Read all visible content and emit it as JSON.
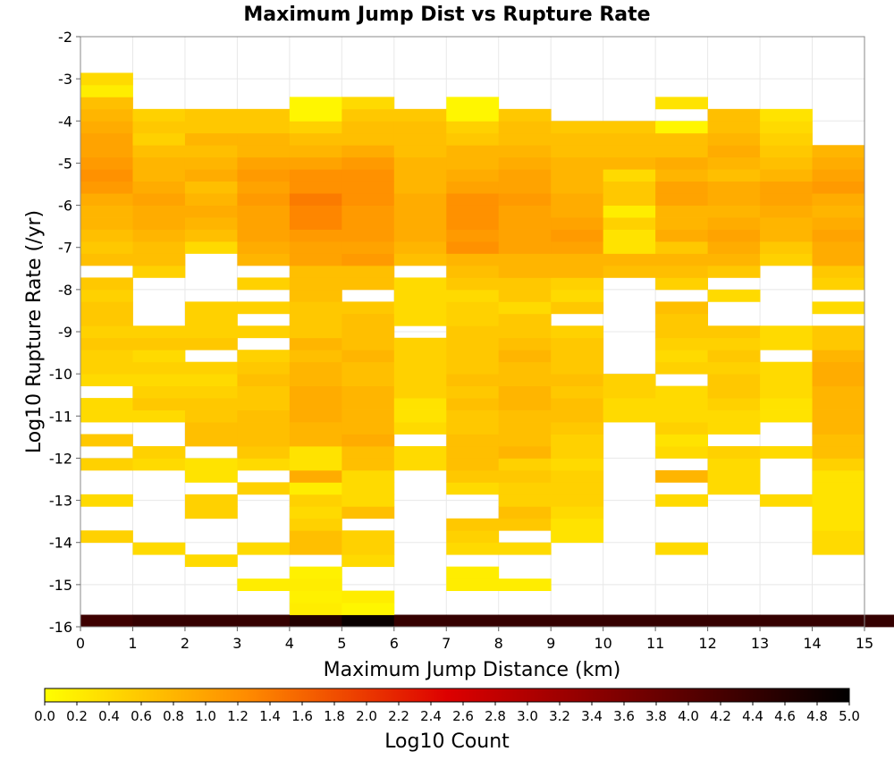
{
  "chart_data": {
    "type": "heatmap",
    "title": "Maximum Jump Dist vs Rupture Rate",
    "xlabel": "Maximum Jump Distance (km)",
    "ylabel": "Log10 Rupture Rate (/yr)",
    "xlim": [
      0,
      15
    ],
    "ylim": [
      -16,
      -2
    ],
    "x_ticks": [
      "0",
      "1",
      "2",
      "3",
      "4",
      "5",
      "6",
      "7",
      "8",
      "9",
      "10",
      "11",
      "12",
      "13",
      "14",
      "15"
    ],
    "y_ticks": [
      "-2",
      "-3",
      "-4",
      "-5",
      "-6",
      "-7",
      "-8",
      "-9",
      "-10",
      "-11",
      "-12",
      "-13",
      "-14",
      "-15",
      "-16"
    ],
    "x_bin_width": 1,
    "y_bin_height": 0.2857,
    "y_bins": [
      "-15.71",
      "-15.43",
      "-15.14",
      "-14.86",
      "-14.57",
      "-14.29",
      "-14.00",
      "-13.71",
      "-13.43",
      "-13.14",
      "-12.86",
      "-12.57",
      "-12.29",
      "-12.00",
      "-11.71",
      "-11.43",
      "-11.14",
      "-10.86",
      "-10.57",
      "-10.29",
      "-10.00",
      "-9.71",
      "-9.43",
      "-9.14",
      "-8.86",
      "-8.57",
      "-8.29",
      "-8.00",
      "-7.71",
      "-7.43",
      "-7.14",
      "-6.86",
      "-6.57",
      "-6.29",
      "-6.00",
      "-5.71",
      "-5.43",
      "-5.14",
      "-4.86",
      "-4.57",
      "-4.29",
      "-4.00",
      "-3.71",
      "-3.43",
      "-3.14",
      "-2.86"
    ],
    "colorbar": {
      "label": "Log10 Count",
      "min": 0.0,
      "max": 5.0,
      "ticks": [
        "0.0",
        "0.2",
        "0.4",
        "0.6",
        "0.8",
        "1.0",
        "1.2",
        "1.4",
        "1.6",
        "1.8",
        "2.0",
        "2.2",
        "2.4",
        "2.6",
        "2.8",
        "3.0",
        "3.2",
        "3.4",
        "3.6",
        "3.8",
        "4.0",
        "4.2",
        "4.4",
        "4.6",
        "4.8",
        "5.0"
      ],
      "colors": [
        "#ffff00",
        "#ff8c00",
        "#dd0000",
        "#000000"
      ]
    },
    "z_rows": [
      [
        4.3,
        4.4,
        4.4,
        4.4,
        4.6,
        4.9,
        4.4,
        4.4,
        4.4,
        4.4,
        4.4,
        4.4,
        4.4,
        4.4,
        4.4,
        4.4
      ],
      [
        null,
        null,
        null,
        null,
        0.2,
        0.1,
        null,
        null,
        null,
        null,
        null,
        null,
        null,
        null,
        null,
        null
      ],
      [
        null,
        null,
        null,
        null,
        0.15,
        0.2,
        null,
        null,
        null,
        null,
        null,
        null,
        null,
        null,
        null,
        null
      ],
      [
        null,
        null,
        null,
        0.2,
        0.2,
        null,
        null,
        0.2,
        0.2,
        null,
        null,
        null,
        null,
        null,
        null,
        null
      ],
      [
        null,
        null,
        null,
        null,
        0.15,
        null,
        null,
        0.2,
        null,
        null,
        null,
        null,
        null,
        null,
        null,
        null
      ],
      [
        null,
        null,
        0.4,
        null,
        null,
        0.4,
        null,
        null,
        null,
        null,
        null,
        null,
        null,
        null,
        null,
        null
      ],
      [
        null,
        0.4,
        null,
        0.4,
        0.7,
        0.5,
        null,
        0.4,
        0.4,
        null,
        null,
        0.4,
        null,
        null,
        0.4,
        null
      ],
      [
        0.5,
        null,
        null,
        null,
        0.7,
        0.5,
        null,
        0.5,
        null,
        0.3,
        null,
        null,
        null,
        null,
        0.4,
        null
      ],
      [
        null,
        null,
        null,
        null,
        0.5,
        null,
        null,
        0.6,
        0.6,
        0.3,
        null,
        null,
        null,
        null,
        0.3,
        null
      ],
      [
        null,
        null,
        0.5,
        null,
        0.4,
        0.7,
        null,
        null,
        0.7,
        0.4,
        null,
        null,
        null,
        null,
        0.3,
        null
      ],
      [
        0.4,
        null,
        0.5,
        null,
        0.5,
        0.4,
        null,
        null,
        0.5,
        0.5,
        null,
        0.4,
        null,
        0.4,
        0.3,
        null
      ],
      [
        null,
        null,
        null,
        0.5,
        0.2,
        0.4,
        null,
        0.4,
        0.5,
        0.5,
        null,
        null,
        0.4,
        null,
        0.3,
        null
      ],
      [
        null,
        null,
        0.3,
        null,
        0.9,
        0.4,
        null,
        0.6,
        0.6,
        0.5,
        null,
        0.8,
        0.4,
        null,
        0.3,
        null
      ],
      [
        0.5,
        0.4,
        0.3,
        0.4,
        0.3,
        0.7,
        0.4,
        0.7,
        0.5,
        0.4,
        null,
        null,
        0.4,
        null,
        0.5,
        null
      ],
      [
        null,
        0.5,
        null,
        0.6,
        0.3,
        0.7,
        0.4,
        0.7,
        0.8,
        0.5,
        null,
        0.4,
        0.5,
        0.4,
        0.7,
        null
      ],
      [
        0.6,
        null,
        0.7,
        0.7,
        0.8,
        0.9,
        null,
        0.7,
        0.7,
        0.5,
        null,
        0.3,
        null,
        null,
        0.7,
        null
      ],
      [
        null,
        null,
        0.7,
        0.7,
        0.8,
        0.8,
        0.4,
        0.6,
        0.7,
        0.6,
        null,
        0.5,
        0.4,
        null,
        0.8,
        null
      ],
      [
        0.4,
        0.4,
        0.6,
        0.7,
        0.9,
        0.8,
        0.3,
        0.6,
        0.7,
        0.7,
        0.4,
        0.4,
        0.4,
        0.3,
        0.8,
        null
      ],
      [
        0.4,
        0.6,
        0.6,
        0.6,
        0.9,
        0.8,
        0.3,
        0.7,
        0.8,
        0.7,
        0.4,
        0.4,
        0.5,
        0.3,
        0.8,
        null
      ],
      [
        null,
        0.5,
        0.5,
        0.6,
        0.9,
        0.8,
        0.5,
        0.6,
        0.8,
        0.6,
        0.5,
        0.4,
        0.6,
        0.4,
        0.8,
        null
      ],
      [
        0.4,
        0.4,
        0.4,
        0.7,
        0.8,
        0.7,
        0.5,
        0.7,
        0.7,
        0.7,
        0.5,
        null,
        0.6,
        0.4,
        0.9,
        null
      ],
      [
        0.5,
        0.5,
        0.5,
        0.6,
        0.8,
        0.7,
        0.5,
        0.6,
        0.7,
        0.6,
        null,
        0.5,
        0.5,
        0.4,
        0.9,
        null
      ],
      [
        0.5,
        0.4,
        null,
        0.5,
        0.7,
        0.8,
        0.5,
        0.6,
        0.8,
        0.6,
        null,
        0.4,
        0.6,
        null,
        0.8,
        null
      ],
      [
        0.6,
        0.6,
        0.6,
        null,
        0.8,
        0.7,
        0.5,
        0.6,
        0.7,
        0.6,
        null,
        0.5,
        0.5,
        0.4,
        0.6,
        null
      ],
      [
        0.5,
        0.5,
        0.5,
        0.5,
        0.6,
        0.7,
        null,
        0.6,
        0.6,
        0.5,
        null,
        0.6,
        0.6,
        0.4,
        0.6,
        null
      ],
      [
        0.6,
        null,
        0.5,
        null,
        0.6,
        0.7,
        0.4,
        0.5,
        0.6,
        null,
        null,
        0.6,
        null,
        null,
        null,
        null
      ],
      [
        0.6,
        null,
        0.5,
        0.5,
        0.6,
        0.6,
        0.4,
        0.5,
        0.4,
        0.6,
        null,
        0.7,
        null,
        null,
        0.4,
        null
      ],
      [
        0.5,
        null,
        null,
        null,
        0.7,
        null,
        0.4,
        0.4,
        0.6,
        0.4,
        null,
        null,
        0.4,
        null,
        null,
        null
      ],
      [
        0.6,
        null,
        null,
        0.5,
        0.7,
        0.7,
        0.4,
        0.6,
        0.6,
        0.5,
        null,
        0.5,
        null,
        null,
        0.5,
        null
      ],
      [
        null,
        0.5,
        null,
        null,
        0.7,
        0.7,
        null,
        0.7,
        0.8,
        0.8,
        0.7,
        0.7,
        0.6,
        null,
        0.6,
        null
      ],
      [
        0.7,
        0.7,
        null,
        0.8,
        1.0,
        1.1,
        0.7,
        0.8,
        0.8,
        0.8,
        0.8,
        0.8,
        0.8,
        0.5,
        0.9,
        null
      ],
      [
        0.6,
        0.7,
        0.4,
        0.9,
        1.0,
        1.0,
        0.8,
        1.2,
        1.0,
        1.0,
        0.3,
        0.6,
        0.9,
        0.6,
        0.9,
        null
      ],
      [
        0.7,
        0.8,
        0.7,
        1.0,
        1.1,
        1.1,
        0.9,
        1.1,
        1.0,
        1.1,
        0.3,
        0.9,
        1.0,
        0.8,
        1.0,
        null
      ],
      [
        0.8,
        0.9,
        0.8,
        1.0,
        1.3,
        1.1,
        0.9,
        1.2,
        1.0,
        1.0,
        0.5,
        0.8,
        0.9,
        0.8,
        0.9,
        null
      ],
      [
        0.8,
        0.9,
        0.9,
        1.0,
        1.3,
        1.1,
        0.9,
        1.2,
        1.0,
        0.9,
        0.2,
        0.8,
        0.8,
        0.9,
        0.8,
        null
      ],
      [
        0.9,
        1.0,
        0.8,
        1.1,
        1.4,
        1.2,
        0.9,
        1.2,
        1.1,
        0.9,
        0.6,
        1.0,
        0.9,
        1.0,
        0.9,
        null
      ],
      [
        1.1,
        0.9,
        0.7,
        1.0,
        1.2,
        1.2,
        0.8,
        1.0,
        1.0,
        0.8,
        0.6,
        1.0,
        0.9,
        1.0,
        1.1,
        null
      ],
      [
        1.2,
        0.8,
        0.9,
        1.1,
        1.2,
        1.2,
        0.8,
        0.9,
        1.0,
        0.8,
        0.4,
        0.8,
        0.7,
        0.8,
        1.0,
        null
      ],
      [
        1.1,
        0.8,
        0.8,
        1.0,
        1.0,
        1.1,
        0.8,
        0.8,
        0.9,
        0.8,
        0.8,
        0.9,
        0.8,
        0.7,
        0.9,
        null
      ],
      [
        1.0,
        0.7,
        0.7,
        0.8,
        0.8,
        0.9,
        0.7,
        0.8,
        0.8,
        0.7,
        0.7,
        0.7,
        0.9,
        0.6,
        0.8,
        null
      ],
      [
        1.0,
        0.5,
        0.8,
        0.8,
        0.7,
        0.7,
        0.7,
        0.6,
        0.7,
        0.7,
        0.7,
        0.7,
        0.8,
        0.5,
        null,
        null
      ],
      [
        0.9,
        0.6,
        0.6,
        0.6,
        0.5,
        0.7,
        0.7,
        0.5,
        0.7,
        0.6,
        0.6,
        0.1,
        0.7,
        0.4,
        null,
        null
      ],
      [
        0.8,
        0.5,
        0.6,
        0.6,
        0.1,
        0.6,
        0.6,
        0.1,
        0.6,
        null,
        null,
        null,
        0.7,
        0.3,
        null,
        null
      ],
      [
        0.7,
        null,
        null,
        null,
        0.1,
        0.4,
        null,
        0.1,
        null,
        null,
        null,
        0.3,
        null,
        null,
        null,
        null
      ],
      [
        0.2,
        null,
        null,
        null,
        null,
        null,
        null,
        null,
        null,
        null,
        null,
        null,
        null,
        null,
        null,
        null
      ],
      [
        0.4,
        null,
        null,
        null,
        null,
        null,
        null,
        null,
        null,
        null,
        null,
        null,
        null,
        null,
        null,
        null
      ]
    ]
  }
}
